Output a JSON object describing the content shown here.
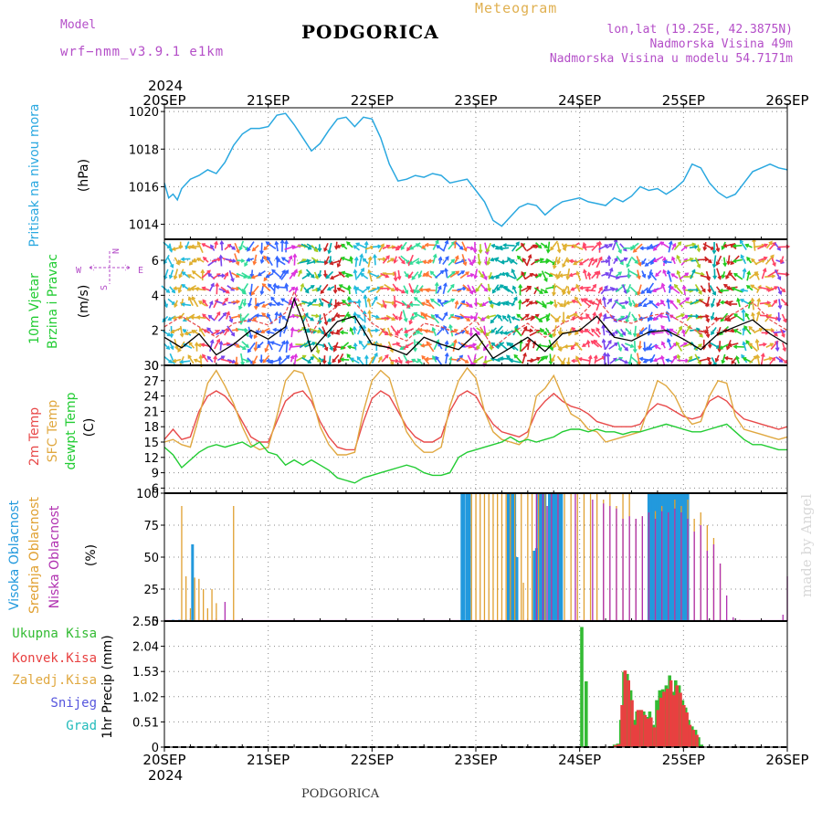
{
  "header": {
    "model_label": "Model",
    "model_name": "wrf−nmm_v3.9.1 e1km",
    "title": "PODGORICA",
    "product": "Meteogram",
    "lonlat": "lon,lat (19.25E, 42.3875N)",
    "elevation": "Nadmorska Visina 49m",
    "model_elevation": "Nadmorska Visina u modelu 54.7171m",
    "footer_title": "PODGORICA",
    "credit": "made by Angel"
  },
  "time_axis": {
    "year": "2024",
    "labels": [
      "20SEP",
      "21SEP",
      "22SEP",
      "23SEP",
      "24SEP",
      "25SEP",
      "26SEP"
    ],
    "range_hours": [
      0,
      144
    ]
  },
  "colors": {
    "pressure": "#2aa8e0",
    "temp2m": "#e84a4a",
    "sfc": "#e0a840",
    "dewpt": "#22cc33",
    "high_cloud": "#2299dd",
    "mid_cloud": "#e0a030",
    "low_cloud": "#b030b0",
    "total_precip": "#33bb33",
    "conv_precip": "#e84040",
    "snow": "#5555dd",
    "hail": "#22bbbb"
  },
  "chart_data": [
    {
      "type": "line",
      "name": "pressure",
      "ylabel": [
        "Pritisak na nivou mora",
        "(hPa)"
      ],
      "ylim": [
        1013.2,
        1020.2
      ],
      "yticks": [
        1014,
        1016,
        1018,
        1020
      ],
      "x": [
        0,
        1,
        2,
        3,
        4,
        6,
        8,
        10,
        12,
        14,
        16,
        18,
        20,
        22,
        24,
        26,
        28,
        30,
        32,
        34,
        36,
        38,
        40,
        42,
        44,
        46,
        48,
        50,
        52,
        54,
        56,
        58,
        60,
        62,
        64,
        66,
        68,
        70,
        72,
        74,
        76,
        78,
        80,
        82,
        84,
        86,
        88,
        90,
        92,
        94,
        96,
        98,
        100,
        102,
        104,
        106,
        108,
        110,
        112,
        114,
        116,
        118,
        120,
        122,
        124,
        126,
        128,
        130,
        132,
        134,
        136,
        138,
        140,
        142,
        144
      ],
      "values": [
        1016.2,
        1015.4,
        1015.6,
        1015.3,
        1015.9,
        1016.4,
        1016.6,
        1016.9,
        1016.7,
        1017.3,
        1018.2,
        1018.8,
        1019.1,
        1019.1,
        1019.2,
        1019.8,
        1019.9,
        1019.3,
        1018.6,
        1017.9,
        1018.3,
        1019.0,
        1019.6,
        1019.7,
        1019.2,
        1019.7,
        1019.6,
        1018.6,
        1017.2,
        1016.3,
        1016.4,
        1016.6,
        1016.5,
        1016.7,
        1016.6,
        1016.2,
        1016.3,
        1016.4,
        1015.8,
        1015.2,
        1014.2,
        1013.9,
        1014.4,
        1014.9,
        1015.1,
        1015.0,
        1014.5,
        1014.9,
        1015.2,
        1015.3,
        1015.4,
        1015.2,
        1015.1,
        1015.0,
        1015.4,
        1015.2,
        1015.5,
        1016.0,
        1015.8,
        1015.9,
        1015.6,
        1015.9,
        1016.3,
        1017.2,
        1017.0,
        1016.2,
        1015.7,
        1015.4,
        1015.6,
        1016.2,
        1016.8,
        1017.0,
        1017.2,
        1017.0,
        1016.9
      ]
    },
    {
      "type": "line",
      "name": "wind",
      "ylabel": [
        "10m Vjetar",
        "Brzina i Pravac",
        "(m/s)"
      ],
      "compass": {
        "n": "N",
        "s": "S",
        "e": "E",
        "w": "W"
      },
      "ylim": [
        0,
        7.2
      ],
      "yticks": [
        0,
        2,
        4,
        6
      ],
      "x": [
        0,
        4,
        8,
        12,
        16,
        20,
        24,
        28,
        30,
        32,
        34,
        36,
        40,
        44,
        48,
        52,
        56,
        60,
        64,
        68,
        72,
        76,
        80,
        84,
        88,
        92,
        96,
        100,
        104,
        108,
        112,
        116,
        120,
        124,
        128,
        132,
        136,
        140,
        144
      ],
      "speed": [
        1.6,
        1.0,
        1.8,
        0.6,
        1.2,
        2.0,
        1.5,
        2.2,
        3.8,
        2.5,
        0.8,
        1.4,
        2.5,
        2.8,
        1.2,
        1.0,
        0.6,
        1.6,
        1.2,
        0.9,
        1.8,
        0.4,
        1.0,
        1.6,
        0.8,
        1.8,
        2.0,
        2.8,
        1.6,
        1.4,
        1.9,
        2.0,
        1.5,
        0.9,
        1.8,
        2.2,
        2.6,
        1.8,
        1.2
      ],
      "gust": [
        2.2,
        2.8,
        2.2,
        1.6,
        2.4,
        2.6,
        2.3,
        3.0,
        4.2,
        3.2,
        1.8,
        2.6,
        3.4,
        3.6,
        2.4,
        1.8,
        1.4,
        2.4,
        2.2,
        1.8,
        2.6,
        1.0,
        1.8,
        2.4,
        1.6,
        2.4,
        2.8,
        3.8,
        2.6,
        2.4,
        2.8,
        3.0,
        2.4,
        1.8,
        2.6,
        3.0,
        3.6,
        2.6,
        2.0
      ]
    },
    {
      "type": "line",
      "name": "temperature",
      "ylabel": [
        "2m Temp",
        "SFC Temp",
        "dewpt Temp",
        "(C)"
      ],
      "ylim": [
        5,
        30
      ],
      "yticks": [
        6,
        9,
        12,
        15,
        18,
        21,
        24,
        27,
        30
      ],
      "x": [
        0,
        2,
        4,
        6,
        8,
        10,
        12,
        14,
        16,
        18,
        20,
        22,
        24,
        26,
        28,
        30,
        32,
        34,
        36,
        38,
        40,
        42,
        44,
        46,
        48,
        50,
        52,
        54,
        56,
        58,
        60,
        62,
        64,
        66,
        68,
        70,
        72,
        74,
        76,
        78,
        80,
        82,
        84,
        86,
        88,
        90,
        92,
        94,
        96,
        98,
        100,
        102,
        104,
        106,
        108,
        110,
        112,
        114,
        116,
        118,
        120,
        122,
        124,
        126,
        128,
        130,
        132,
        134,
        136,
        138,
        140,
        142,
        144
      ],
      "series": [
        {
          "name": "2m Temp",
          "color_key": "temp2m",
          "values": [
            15.5,
            17.5,
            15.5,
            16.0,
            21.0,
            24.0,
            25.0,
            24.0,
            22.0,
            19.0,
            16.0,
            15.0,
            15.0,
            19.0,
            23.0,
            24.5,
            25.0,
            23.0,
            19.0,
            16.0,
            14.0,
            13.5,
            13.5,
            19.0,
            23.5,
            25.0,
            24.0,
            21.0,
            18.0,
            16.0,
            15.0,
            15.0,
            16.0,
            21.0,
            24.0,
            25.0,
            24.0,
            21.0,
            18.5,
            17.0,
            16.5,
            16.0,
            17.0,
            21.0,
            23.0,
            24.5,
            23.0,
            22.0,
            21.5,
            20.5,
            19.0,
            18.5,
            18.0,
            18.0,
            18.0,
            18.5,
            21.0,
            22.5,
            22.0,
            21.0,
            20.0,
            19.5,
            20.0,
            23.0,
            24.0,
            23.0,
            21.0,
            19.5,
            19.0,
            18.5,
            18.0,
            17.5,
            18.0
          ]
        },
        {
          "name": "SFC Temp",
          "color_key": "sfc",
          "values": [
            15.0,
            15.5,
            14.5,
            14.0,
            20.0,
            26.5,
            29.0,
            26.0,
            22.5,
            18.0,
            14.5,
            13.5,
            14.0,
            20.0,
            27.0,
            29.0,
            28.5,
            24.0,
            18.0,
            14.5,
            12.5,
            12.5,
            13.0,
            21.0,
            27.0,
            29.0,
            27.5,
            22.0,
            17.0,
            14.5,
            13.0,
            13.0,
            14.0,
            22.0,
            27.0,
            29.5,
            27.5,
            21.0,
            17.0,
            15.5,
            15.0,
            14.5,
            16.0,
            24.0,
            25.5,
            28.0,
            24.0,
            20.5,
            19.5,
            17.5,
            17.0,
            15.0,
            15.5,
            16.0,
            16.5,
            17.0,
            22.0,
            27.0,
            26.0,
            24.0,
            20.5,
            18.5,
            19.0,
            24.0,
            27.0,
            26.5,
            20.0,
            17.5,
            17.0,
            16.5,
            16.0,
            15.5,
            16.0
          ]
        },
        {
          "name": "dewpt Temp",
          "color_key": "dewpt",
          "values": [
            14.0,
            12.5,
            10.0,
            11.5,
            13.0,
            14.0,
            14.5,
            14.0,
            14.5,
            15.0,
            14.0,
            15.0,
            13.0,
            12.5,
            10.5,
            11.5,
            10.5,
            11.5,
            10.5,
            9.5,
            8.0,
            7.5,
            7.0,
            8.0,
            8.5,
            9.0,
            9.5,
            10.0,
            10.5,
            10.0,
            9.0,
            8.5,
            8.5,
            9.0,
            12.0,
            13.0,
            13.5,
            14.0,
            14.5,
            15.0,
            16.0,
            15.0,
            15.5,
            15.0,
            15.5,
            16.0,
            17.0,
            17.5,
            17.5,
            17.0,
            17.5,
            17.0,
            17.0,
            16.5,
            17.0,
            17.0,
            17.5,
            18.0,
            18.5,
            18.0,
            17.5,
            17.0,
            17.0,
            17.5,
            18.0,
            18.5,
            17.0,
            15.5,
            14.5,
            14.5,
            14.0,
            13.5,
            13.5
          ]
        }
      ]
    },
    {
      "type": "bar",
      "name": "clouds",
      "ylabel": [
        "Visoka Oblacnost",
        "Srednja Oblacnost",
        "Niska Oblacnost",
        "(%)"
      ],
      "ylim": [
        0,
        100
      ],
      "yticks": [
        0,
        25,
        50,
        75,
        100
      ],
      "series": [
        {
          "name": "Visoka Oblacnost",
          "color_key": "high_cloud",
          "x": [
            2.0,
            3.5,
            5.0,
            6.5,
            68.8,
            69.0,
            69.3,
            70.0,
            70.5,
            79.5,
            80.0,
            80.5,
            81.0,
            81.5,
            85.5,
            86.0,
            86.5,
            87.0,
            87.5,
            88.0,
            89.0,
            89.5,
            90.0,
            90.5,
            91.0,
            91.5,
            91.8,
            112.0,
            112.5,
            113.0,
            113.5,
            114.0,
            114.5,
            115.0,
            115.5,
            116.0,
            116.5,
            117.0,
            117.5,
            118.0,
            118.5,
            119.0,
            119.5,
            120.0,
            120.5,
            121.0
          ],
          "values": [
            1,
            1,
            1,
            60,
            100,
            100,
            100,
            100,
            100,
            100,
            100,
            100,
            100,
            50,
            55,
            57,
            100,
            100,
            100,
            100,
            100,
            100,
            100,
            100,
            100,
            100,
            100,
            100,
            100,
            100,
            100,
            100,
            100,
            100,
            100,
            100,
            100,
            100,
            100,
            100,
            100,
            100,
            100,
            100,
            100,
            100
          ]
        },
        {
          "name": "Srednja Oblacnost",
          "color_key": "mid_cloud",
          "x": [
            4.0,
            5.0,
            6.0,
            7.0,
            8.0,
            9.0,
            10.0,
            11.0,
            12.0,
            16.0,
            71.0,
            72.0,
            73.0,
            74.0,
            75.0,
            76.0,
            77.0,
            78.0,
            79.0,
            80.0,
            81.0,
            82.5,
            83.0,
            84.0,
            85.0,
            86.5,
            88.0,
            89.5,
            91.0,
            92.5,
            94.0,
            95.5,
            97.0,
            98.5,
            100.0,
            101.5,
            103.0,
            104.5,
            106.0,
            107.5,
            109.0,
            110.5,
            112.0,
            113.5,
            115.0,
            116.5,
            118.0,
            119.5,
            121.0,
            122.5,
            124.0,
            125.5,
            127.0,
            128.5
          ],
          "values": [
            90,
            35,
            10,
            34,
            33,
            25,
            10,
            25,
            14,
            90,
            100,
            100,
            100,
            100,
            100,
            100,
            100,
            100,
            100,
            100,
            100,
            100,
            30,
            100,
            100,
            100,
            100,
            100,
            100,
            100,
            100,
            100,
            100,
            100,
            100,
            95,
            100,
            90,
            100,
            100,
            80,
            82,
            85,
            86,
            90,
            85,
            95,
            90,
            95,
            80,
            85,
            75,
            65,
            45
          ]
        },
        {
          "name": "Niska Oblacnost",
          "color_key": "low_cloud",
          "x": [
            14.0,
            18.0,
            86.0,
            87.5,
            88.5,
            89.5,
            91.0,
            95.0,
            99.0,
            101.5,
            103.0,
            104.5,
            106.0,
            107.5,
            109.0,
            110.5,
            112.0,
            113.5,
            115.0,
            116.5,
            118.0,
            119.5,
            121.0,
            122.5,
            124.0,
            125.5,
            127.0,
            128.5,
            130.0,
            131.5,
            133.0,
            143.0,
            144.0
          ],
          "values": [
            15,
            1,
            100,
            100,
            90,
            100,
            100,
            100,
            95,
            92,
            90,
            88,
            80,
            82,
            80,
            82,
            85,
            80,
            86,
            85,
            88,
            85,
            80,
            70,
            75,
            55,
            60,
            45,
            20,
            3,
            1,
            5,
            35
          ]
        }
      ]
    },
    {
      "type": "bar",
      "name": "precipitation",
      "ylabel": [
        "Ukupna Kisa",
        "Konvek.Kisa",
        "Zaledj.Kisa",
        "Snijeg",
        "Grad",
        "1hr Precip (mm)"
      ],
      "ylim": [
        0,
        2.55
      ],
      "yticks": [
        0,
        0.51,
        1.02,
        1.53,
        2.04,
        2.55
      ],
      "yticklabels": [
        "0",
        "0.51",
        "1.02",
        "1.53",
        "2.04",
        "2.55"
      ],
      "series": [
        {
          "name": "Ukupna Kisa",
          "color_key": "total_precip",
          "x": [
            96.5,
            97.5,
            104.0,
            104.8,
            105.5,
            106.2,
            107.0,
            107.8,
            108.5,
            109.2,
            110.0,
            110.8,
            111.5,
            112.2,
            113.0,
            113.8,
            114.5,
            115.2,
            116.0,
            116.8,
            117.5,
            118.2,
            119.0,
            119.8,
            120.5,
            121.2,
            122.0,
            122.8,
            123.5,
            124.2
          ],
          "values": [
            2.43,
            1.33,
            0.05,
            0.07,
            0.55,
            1.52,
            1.48,
            1.15,
            0.55,
            0.72,
            0.75,
            0.72,
            0.61,
            0.72,
            0.45,
            0.95,
            1.15,
            1.17,
            1.25,
            1.45,
            1.12,
            1.35,
            1.25,
            0.95,
            0.8,
            0.55,
            0.42,
            0.35,
            0.2,
            0.05
          ]
        },
        {
          "name": "Konvek.Kisa",
          "color_key": "conv_precip",
          "x": [
            104.3,
            105.1,
            105.8,
            106.5,
            107.3,
            108.1,
            108.8,
            109.5,
            110.3,
            111.1,
            111.8,
            112.5,
            113.3,
            114.1,
            114.8,
            115.5,
            116.3,
            117.1,
            117.8,
            118.5,
            119.3,
            120.1,
            120.8,
            121.5,
            122.3,
            123.1
          ],
          "values": [
            0.04,
            0.06,
            0.85,
            1.55,
            1.35,
            0.95,
            0.45,
            0.75,
            0.75,
            0.65,
            0.58,
            0.6,
            0.4,
            0.75,
            1.0,
            1.12,
            1.18,
            1.35,
            1.05,
            1.25,
            1.1,
            0.85,
            0.7,
            0.45,
            0.35,
            0.25
          ]
        },
        {
          "name": "Zaledj.Kisa",
          "color_key": "sfc",
          "x": [],
          "values": []
        },
        {
          "name": "Snijeg",
          "color_key": "snow",
          "x": [],
          "values": []
        },
        {
          "name": "Grad",
          "color_key": "hail",
          "x": [],
          "values": []
        }
      ]
    }
  ]
}
